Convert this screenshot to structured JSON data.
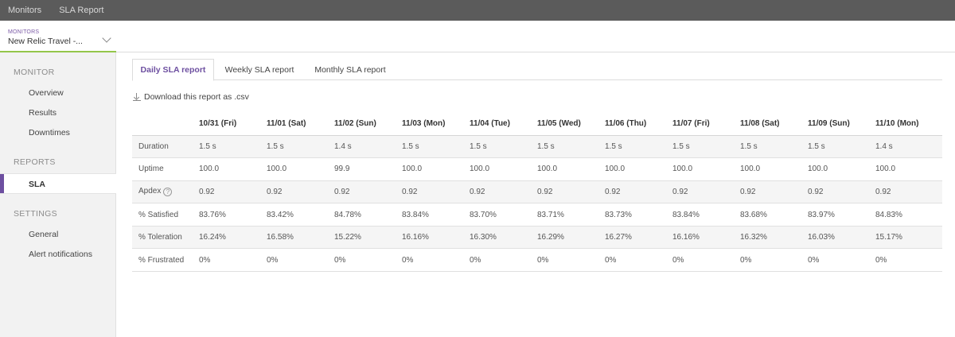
{
  "topnav": {
    "monitors": "Monitors",
    "sla_report": "SLA Report"
  },
  "selector": {
    "label": "MONITORS",
    "value": "New Relic Travel -..."
  },
  "sidebar": {
    "monitor_heading": "MONITOR",
    "overview": "Overview",
    "results": "Results",
    "downtimes": "Downtimes",
    "reports_heading": "REPORTS",
    "sla": "SLA",
    "settings_heading": "SETTINGS",
    "general": "General",
    "alert_notifications": "Alert notifications"
  },
  "tabs": {
    "daily": "Daily SLA report",
    "weekly": "Weekly SLA report",
    "monthly": "Monthly SLA report"
  },
  "download": {
    "label": "Download this report as .csv"
  },
  "colors": {
    "accent": "#6d4fa0",
    "selector_underline": "#94c64a",
    "topbar": "#5b5b5b"
  },
  "table": {
    "columns": [
      "10/31 (Fri)",
      "11/01 (Sat)",
      "11/02 (Sun)",
      "11/03 (Mon)",
      "11/04 (Tue)",
      "11/05 (Wed)",
      "11/06 (Thu)",
      "11/07 (Fri)",
      "11/08 (Sat)",
      "11/09 (Sun)",
      "11/10 (Mon)"
    ],
    "rows": [
      {
        "label": "Duration",
        "values": [
          "1.5 s",
          "1.5 s",
          "1.4 s",
          "1.5 s",
          "1.5 s",
          "1.5 s",
          "1.5 s",
          "1.5 s",
          "1.5 s",
          "1.5 s",
          "1.4 s"
        ]
      },
      {
        "label": "Uptime",
        "values": [
          "100.0",
          "100.0",
          "99.9",
          "100.0",
          "100.0",
          "100.0",
          "100.0",
          "100.0",
          "100.0",
          "100.0",
          "100.0"
        ]
      },
      {
        "label": "Apdex",
        "help": "?",
        "values": [
          "0.92",
          "0.92",
          "0.92",
          "0.92",
          "0.92",
          "0.92",
          "0.92",
          "0.92",
          "0.92",
          "0.92",
          "0.92"
        ]
      },
      {
        "label": "% Satisfied",
        "values": [
          "83.76%",
          "83.42%",
          "84.78%",
          "83.84%",
          "83.70%",
          "83.71%",
          "83.73%",
          "83.84%",
          "83.68%",
          "83.97%",
          "84.83%"
        ]
      },
      {
        "label": "% Toleration",
        "values": [
          "16.24%",
          "16.58%",
          "15.22%",
          "16.16%",
          "16.30%",
          "16.29%",
          "16.27%",
          "16.16%",
          "16.32%",
          "16.03%",
          "15.17%"
        ]
      },
      {
        "label": "% Frustrated",
        "values": [
          "0%",
          "0%",
          "0%",
          "0%",
          "0%",
          "0%",
          "0%",
          "0%",
          "0%",
          "0%",
          "0%"
        ]
      }
    ]
  }
}
